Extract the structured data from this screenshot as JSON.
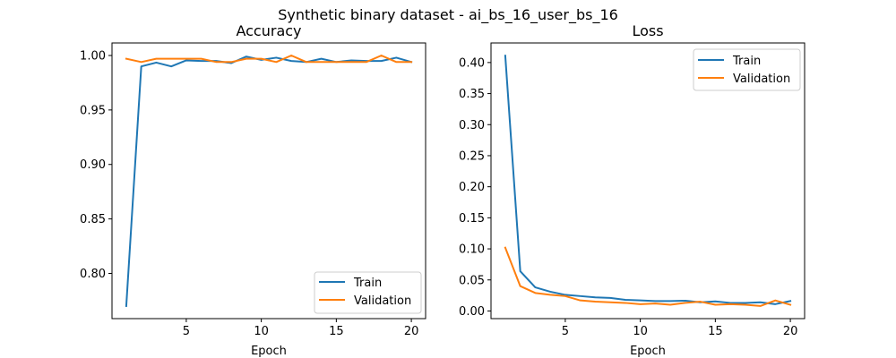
{
  "figure": {
    "title": "Synthetic binary dataset - ai_bs_16_user_bs_16"
  },
  "chart_data": [
    {
      "type": "line",
      "title": "Accuracy",
      "xlabel": "Epoch",
      "ylabel": "",
      "xlim": [
        0.05,
        20.95
      ],
      "ylim": [
        0.7585,
        1.0115
      ],
      "xticks": [
        5,
        10,
        15,
        20
      ],
      "xtick_labels": [
        "5",
        "10",
        "15",
        "20"
      ],
      "yticks": [
        0.8,
        0.85,
        0.9,
        0.95,
        1.0
      ],
      "ytick_labels": [
        "0.80",
        "0.85",
        "0.90",
        "0.95",
        "1.00"
      ],
      "grid": false,
      "legend": "lower-right",
      "x": [
        1,
        2,
        3,
        4,
        5,
        6,
        7,
        8,
        9,
        10,
        11,
        12,
        13,
        14,
        15,
        16,
        17,
        18,
        19,
        20
      ],
      "series": [
        {
          "name": "Train",
          "color": "#1f77b4",
          "values": [
            0.77,
            0.99,
            0.9935,
            0.99,
            0.9955,
            0.995,
            0.995,
            0.993,
            0.999,
            0.996,
            0.998,
            0.995,
            0.994,
            0.997,
            0.994,
            0.9955,
            0.995,
            0.995,
            0.998,
            0.994
          ]
        },
        {
          "name": "Validation",
          "color": "#ff7f0e",
          "values": [
            0.997,
            0.994,
            0.997,
            0.997,
            0.997,
            0.997,
            0.994,
            0.994,
            0.997,
            0.997,
            0.994,
            1.0,
            0.994,
            0.994,
            0.994,
            0.994,
            0.994,
            1.0,
            0.994,
            0.994
          ]
        }
      ]
    },
    {
      "type": "line",
      "title": "Loss",
      "xlabel": "Epoch",
      "ylabel": "",
      "xlim": [
        0.05,
        20.95
      ],
      "ylim": [
        -0.0123,
        0.4315
      ],
      "xticks": [
        5,
        10,
        15,
        20
      ],
      "xtick_labels": [
        "5",
        "10",
        "15",
        "20"
      ],
      "yticks": [
        0.0,
        0.05,
        0.1,
        0.15,
        0.2,
        0.25,
        0.3,
        0.35,
        0.4
      ],
      "ytick_labels": [
        "0.00",
        "0.05",
        "0.10",
        "0.15",
        "0.20",
        "0.25",
        "0.30",
        "0.35",
        "0.40"
      ],
      "grid": false,
      "legend": "upper-right",
      "x": [
        1,
        2,
        3,
        4,
        5,
        6,
        7,
        8,
        9,
        10,
        11,
        12,
        13,
        14,
        15,
        16,
        17,
        18,
        19,
        20
      ],
      "series": [
        {
          "name": "Train",
          "color": "#1f77b4",
          "values": [
            0.411,
            0.064,
            0.038,
            0.031,
            0.026,
            0.024,
            0.022,
            0.021,
            0.018,
            0.017,
            0.016,
            0.016,
            0.0165,
            0.014,
            0.0155,
            0.013,
            0.013,
            0.014,
            0.011,
            0.016
          ]
        },
        {
          "name": "Validation",
          "color": "#ff7f0e",
          "values": [
            0.102,
            0.04,
            0.029,
            0.026,
            0.024,
            0.017,
            0.015,
            0.014,
            0.013,
            0.011,
            0.012,
            0.01,
            0.013,
            0.015,
            0.01,
            0.011,
            0.01,
            0.008,
            0.017,
            0.01
          ]
        }
      ]
    }
  ]
}
